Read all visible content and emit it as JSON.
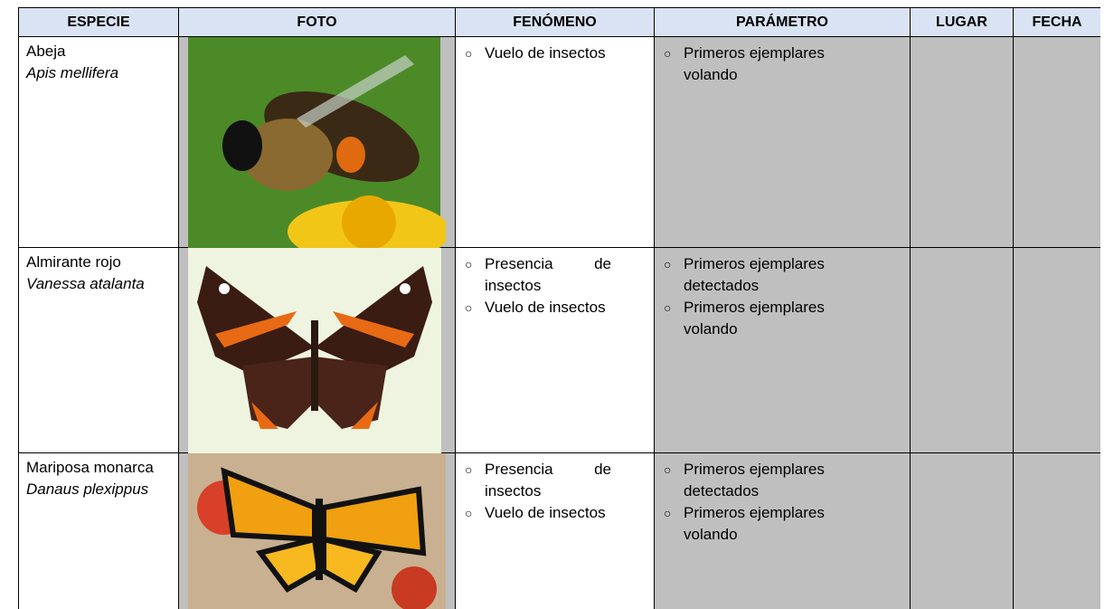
{
  "table": {
    "headers": [
      "ESPECIE",
      "FOTO",
      "FENÓMENO",
      "PARÁMETRO",
      "LUGAR",
      "FECHA"
    ],
    "rows": [
      {
        "common": "Abeja",
        "scientific": "Apis mellifera",
        "fenomeno": [
          "Vuelo de insectos"
        ],
        "parametro": [
          "Primeros ejemplares volando"
        ]
      },
      {
        "common": "Almirante rojo",
        "scientific": "Vanessa atalanta",
        "fenomeno": [
          "Presencia de insectos",
          "Vuelo de insectos"
        ],
        "parametro": [
          "Primeros ejemplares detectados",
          "Primeros ejemplares volando"
        ]
      },
      {
        "common": "Mariposa monarca",
        "scientific": "Danaus plexippus",
        "fenomeno": [
          "Presencia de insectos",
          "Vuelo de insectos"
        ],
        "parametro": [
          "Primeros ejemplares detectados",
          "Primeros ejemplares volando"
        ]
      }
    ]
  }
}
